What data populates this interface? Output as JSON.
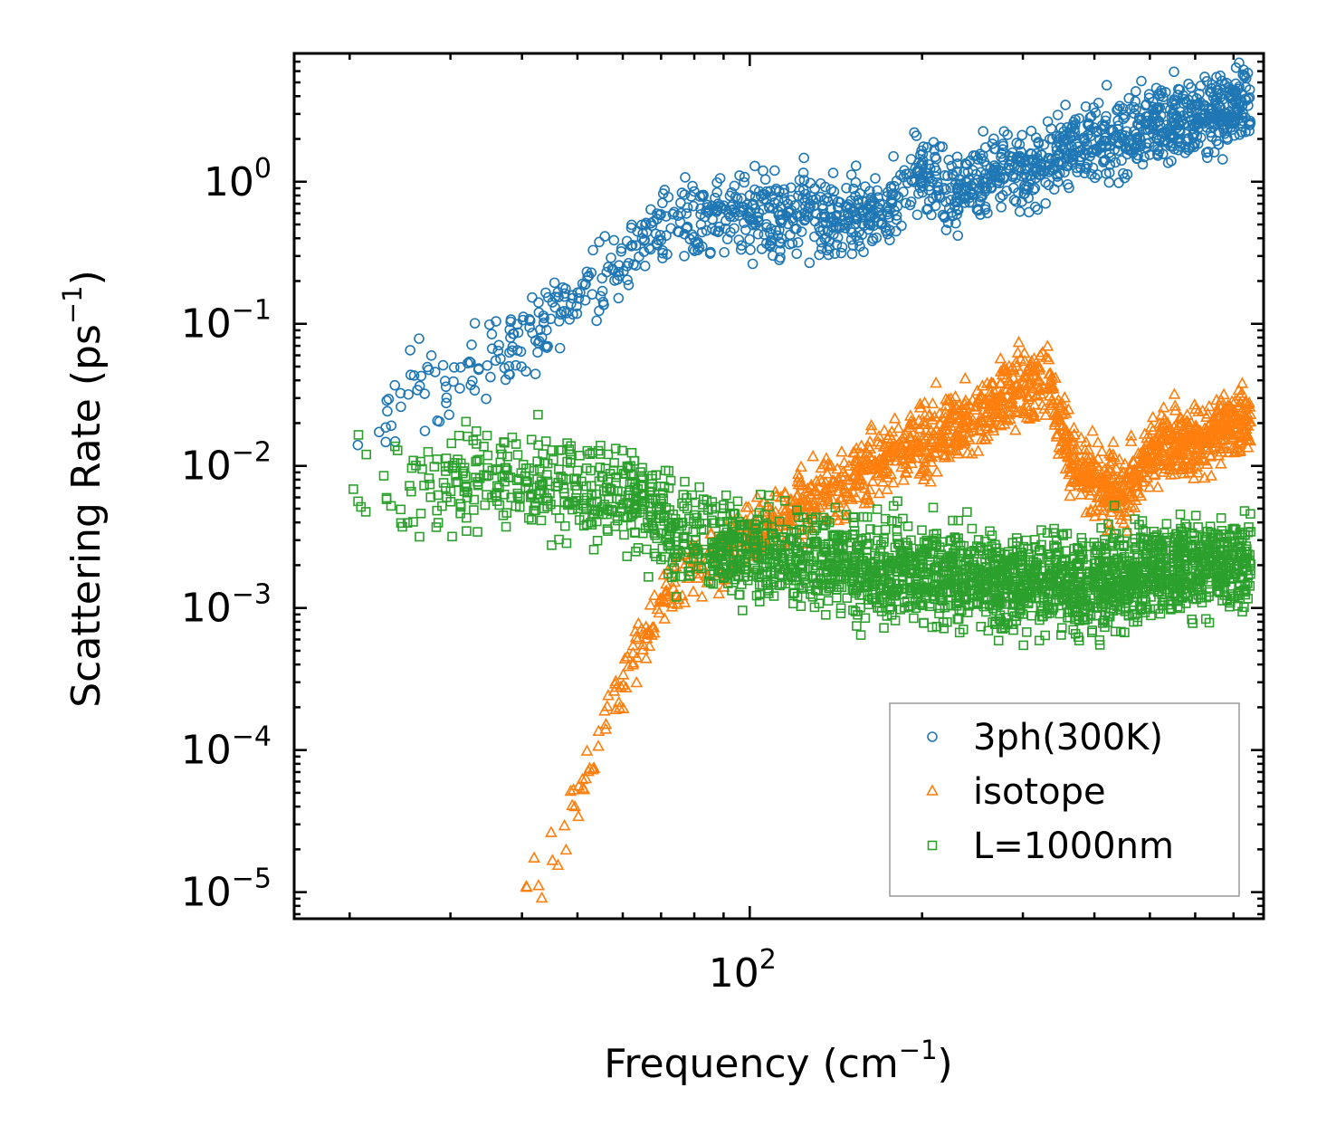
{
  "chart_data": {
    "type": "scatter",
    "xscale": "log",
    "yscale": "log",
    "xlim": [
      16,
      790
    ],
    "ylim": [
      6.5e-06,
      8
    ],
    "x_ticks": [
      {
        "value": 100,
        "base": "10",
        "exp": "2"
      }
    ],
    "y_ticks": [
      {
        "value": 1,
        "base": "10",
        "exp": "0"
      },
      {
        "value": 0.1,
        "base": "10",
        "exp": "−1"
      },
      {
        "value": 0.01,
        "base": "10",
        "exp": "−2"
      },
      {
        "value": 0.001,
        "base": "10",
        "exp": "−3"
      },
      {
        "value": 0.0001,
        "base": "10",
        "exp": "−4"
      },
      {
        "value": 1e-05,
        "base": "10",
        "exp": "−5"
      }
    ],
    "xlabel": {
      "main": "Frequency (cm",
      "sup": "−1",
      "close": ")"
    },
    "ylabel": {
      "main": "Scattering Rate (ps",
      "sup": "−1",
      "close": ")"
    },
    "legend_position": "lower-right",
    "series": [
      {
        "name": "3ph(300K)",
        "marker": "circle",
        "color": "#1f77b4",
        "anchors": [
          [
            20,
            0.009
          ],
          [
            22,
            0.02
          ],
          [
            26,
            0.04
          ],
          [
            30,
            0.03
          ],
          [
            35,
            0.06
          ],
          [
            40,
            0.07
          ],
          [
            45,
            0.12
          ],
          [
            50,
            0.15
          ],
          [
            55,
            0.2
          ],
          [
            60,
            0.3
          ],
          [
            65,
            0.4
          ],
          [
            70,
            0.45
          ],
          [
            80,
            0.5
          ],
          [
            90,
            0.55
          ],
          [
            100,
            0.6
          ],
          [
            120,
            0.6
          ],
          [
            150,
            0.55
          ],
          [
            180,
            0.7
          ],
          [
            200,
            1.2
          ],
          [
            220,
            0.8
          ],
          [
            250,
            1.0
          ],
          [
            280,
            1.3
          ],
          [
            300,
            1.1
          ],
          [
            350,
            1.6
          ],
          [
            400,
            1.9
          ],
          [
            450,
            2.2
          ],
          [
            500,
            2.6
          ],
          [
            600,
            2.9
          ],
          [
            700,
            3.3
          ],
          [
            750,
            3.5
          ]
        ],
        "spread_decades": 0.28
      },
      {
        "name": "isotope",
        "marker": "triangle",
        "color": "#ff7f0e",
        "anchors": [
          [
            40,
            1e-05
          ],
          [
            45,
            2e-05
          ],
          [
            50,
            5e-05
          ],
          [
            55,
            0.00012
          ],
          [
            60,
            0.0003
          ],
          [
            65,
            0.0006
          ],
          [
            70,
            0.0012
          ],
          [
            80,
            0.0018
          ],
          [
            90,
            0.0025
          ],
          [
            100,
            0.003
          ],
          [
            120,
            0.005
          ],
          [
            150,
            0.008
          ],
          [
            180,
            0.012
          ],
          [
            220,
            0.018
          ],
          [
            260,
            0.025
          ],
          [
            300,
            0.035
          ],
          [
            330,
            0.04
          ],
          [
            370,
            0.01
          ],
          [
            400,
            0.008
          ],
          [
            450,
            0.006
          ],
          [
            500,
            0.012
          ],
          [
            550,
            0.015
          ],
          [
            600,
            0.014
          ],
          [
            680,
            0.02
          ],
          [
            750,
            0.02
          ]
        ],
        "spread_decades": 0.25
      },
      {
        "name": "L=1000nm",
        "marker": "square",
        "color": "#2ca02c",
        "anchors": [
          [
            20,
            0.0085
          ],
          [
            25,
            0.0075
          ],
          [
            30,
            0.008
          ],
          [
            40,
            0.0075
          ],
          [
            50,
            0.007
          ],
          [
            60,
            0.006
          ],
          [
            70,
            0.004
          ],
          [
            80,
            0.003
          ],
          [
            100,
            0.0025
          ],
          [
            150,
            0.002
          ],
          [
            200,
            0.0018
          ],
          [
            300,
            0.0015
          ],
          [
            400,
            0.0015
          ],
          [
            500,
            0.0018
          ],
          [
            600,
            0.002
          ],
          [
            750,
            0.002
          ]
        ],
        "spread_decades": 0.35
      }
    ]
  }
}
